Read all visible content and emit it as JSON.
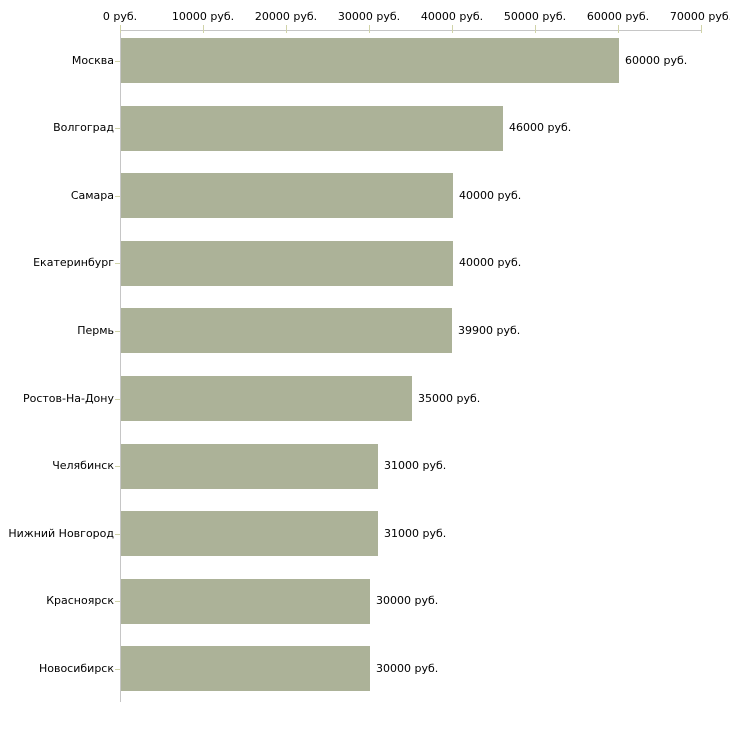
{
  "chart_data": {
    "type": "bar",
    "orientation": "horizontal",
    "title": "",
    "xlabel": "",
    "ylabel": "",
    "unit": "руб.",
    "xlim": [
      0,
      70000
    ],
    "grid": false,
    "legend": null,
    "x_ticks": [
      {
        "value": 0,
        "label": "0 руб."
      },
      {
        "value": 10000,
        "label": "10000 руб."
      },
      {
        "value": 20000,
        "label": "20000 руб."
      },
      {
        "value": 30000,
        "label": "30000 руб."
      },
      {
        "value": 40000,
        "label": "40000 руб."
      },
      {
        "value": 50000,
        "label": "50000 руб."
      },
      {
        "value": 60000,
        "label": "60000 руб."
      },
      {
        "value": 70000,
        "label": "70000 руб."
      }
    ],
    "categories": [
      "Москва",
      "Волгоград",
      "Самара",
      "Екатеринбург",
      "Пермь",
      "Ростов-На-Дону",
      "Челябинск",
      "Нижний Новгород",
      "Красноярск",
      "Новосибирск"
    ],
    "values": [
      60000,
      46000,
      40000,
      40000,
      39900,
      35000,
      31000,
      31000,
      30000,
      30000
    ],
    "value_labels": [
      "60000 руб.",
      "46000 руб.",
      "40000 руб.",
      "40000 руб.",
      "39900 руб.",
      "35000 руб.",
      "31000 руб.",
      "31000 руб.",
      "30000 руб.",
      "30000 руб."
    ],
    "colors": {
      "bar": "#acb298",
      "axis": "#c6c6c6",
      "tick": "#d0d3a8",
      "text": "#000000",
      "background": "#ffffff"
    }
  }
}
